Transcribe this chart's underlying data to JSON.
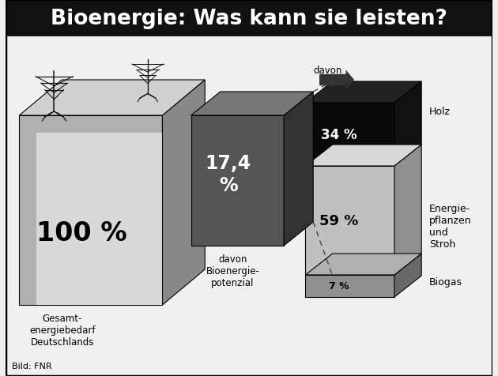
{
  "title": "Bioenergie: Was kann sie leisten?",
  "title_bg": "#111111",
  "title_color": "#ffffff",
  "bg_color": "#f0f0f0",
  "border_color": "#000000",
  "box1": {
    "label_pct": "100 %",
    "label_desc": "Gesamt-\nenergiebedarf\nDeutschlands",
    "color_front_outer": "#b0b0b0",
    "color_front_inner": "#d8d8d8",
    "color_side": "#888888",
    "color_top": "#d0d0d0",
    "color_top_inner": "#e8e8e8"
  },
  "box2": {
    "label_pct": "17,4\n%",
    "label_desc": "davon\nBioenergie-\npotenzial",
    "color_front": "#555555",
    "color_side": "#333333",
    "color_top": "#777777"
  },
  "box3_segments": [
    {
      "label_pct": "34 %",
      "label_desc": "Holz",
      "color_front": "#0a0a0a",
      "color_side": "#111111",
      "color_top": "#222222",
      "text_color": "#ffffff"
    },
    {
      "label_pct": "59 %",
      "label_desc": "Energie-\npflanzen\nund\nStroh",
      "color_front": "#c0c0c0",
      "color_side": "#909090",
      "color_top": "#d8d8d8",
      "text_color": "#000000"
    },
    {
      "label_pct": "7 %",
      "label_desc": "Biogas",
      "color_front": "#909090",
      "color_side": "#686868",
      "color_top": "#b0b0b0",
      "text_color": "#000000"
    }
  ],
  "arrow_color": "#333333",
  "dashed_color": "#444444",
  "davon_label": "davon",
  "footer": "Bild: FNR"
}
